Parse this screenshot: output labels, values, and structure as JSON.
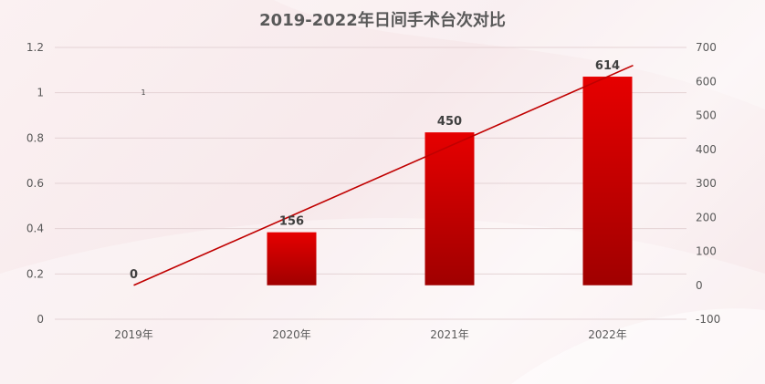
{
  "chart_data": {
    "type": "bar",
    "title": "2019-2022年日间手术台次对比",
    "categories": [
      "2019年",
      "2020年",
      "2021年",
      "2022年"
    ],
    "series": [
      {
        "kind": "bar",
        "axis": "right",
        "values": [
          0,
          156,
          450,
          614
        ],
        "color": "#c00000"
      },
      {
        "kind": "line",
        "axis": "right",
        "values": [
          0,
          156,
          450,
          614
        ],
        "color": "#c00000"
      }
    ],
    "point_labels": [
      "0",
      "156",
      "450",
      "614"
    ],
    "y_left": {
      "ylim": [
        0,
        1.2
      ],
      "ticks": [
        "0",
        "0.2",
        "0.4",
        "0.6",
        "0.8",
        "1",
        "1.2"
      ]
    },
    "y_right": {
      "ylim": [
        -100,
        700
      ],
      "ticks": [
        "-100",
        "0",
        "100",
        "200",
        "300",
        "400",
        "500",
        "600",
        "700"
      ]
    },
    "stray_label": "1",
    "grid": true
  }
}
